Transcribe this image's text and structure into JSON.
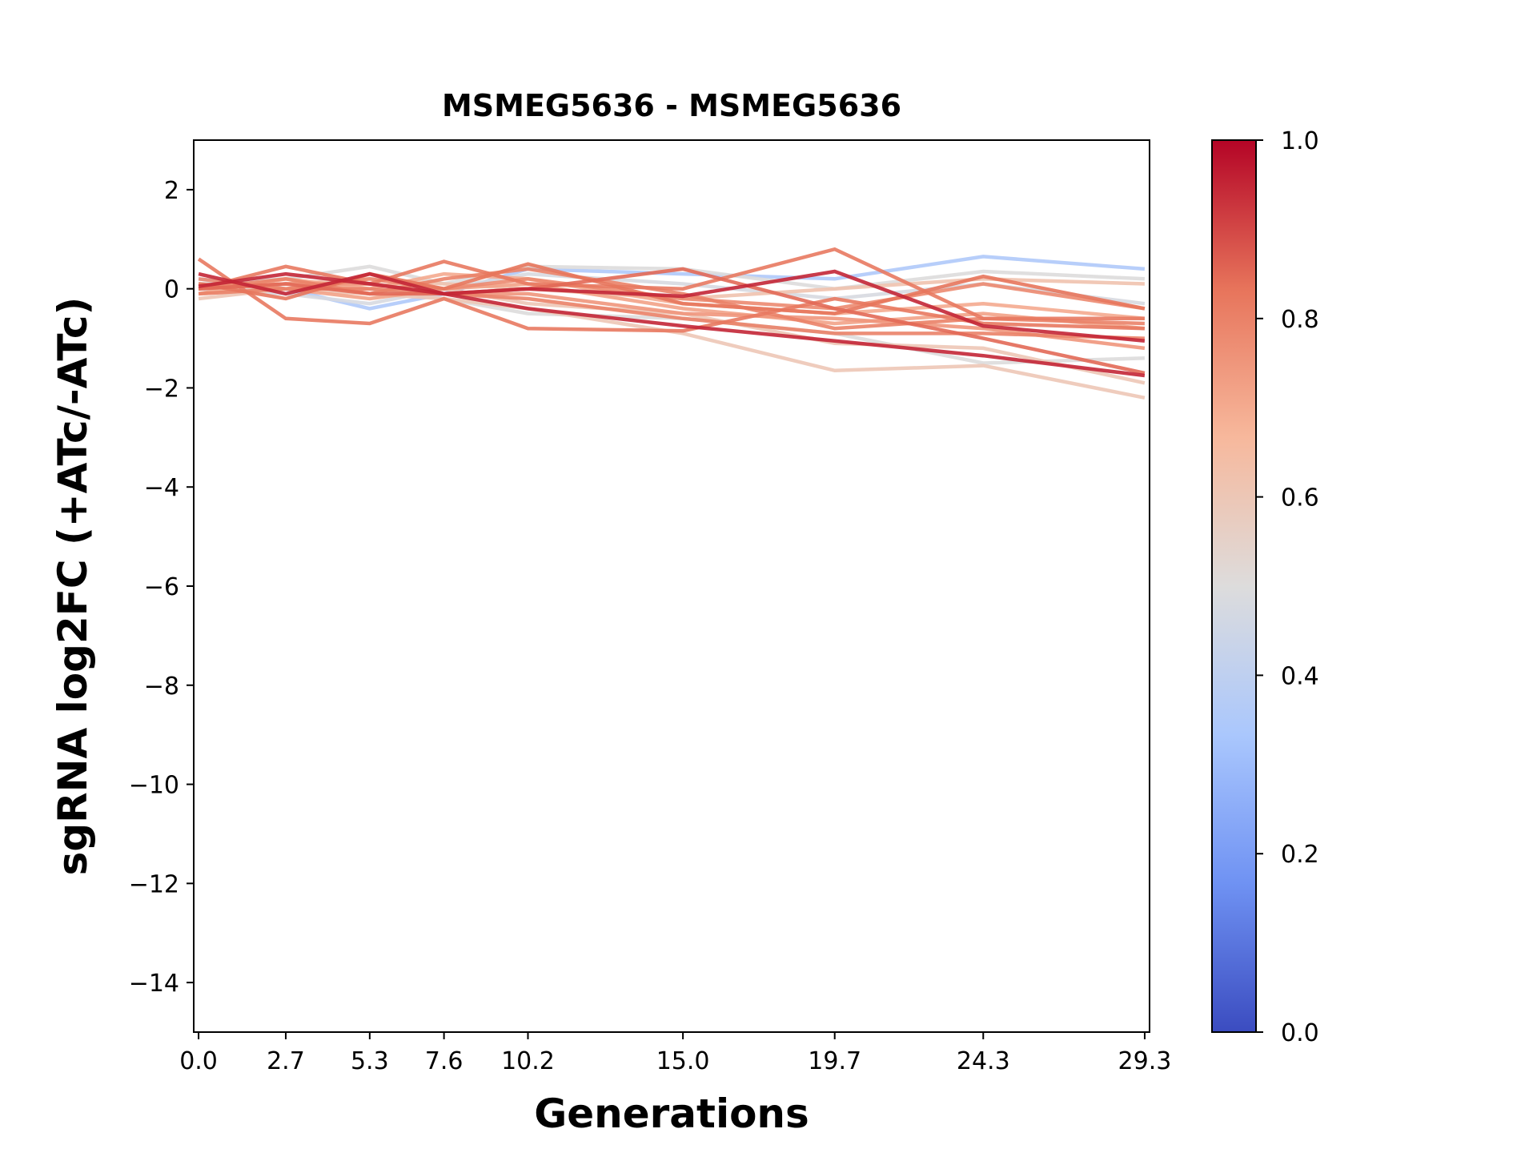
{
  "chart_data": {
    "type": "line",
    "title": "MSMEG5636 - MSMEG5636",
    "xlabel": "Generations",
    "ylabel": "sgRNA log2FC (+ATc/-ATc)",
    "x": [
      0.0,
      2.7,
      5.3,
      7.6,
      10.2,
      15.0,
      19.7,
      24.3,
      29.3
    ],
    "x_tick_labels": [
      "0.0",
      "2.7",
      "5.3",
      "7.6",
      "10.2",
      "15.0",
      "19.7",
      "24.3",
      "29.3"
    ],
    "y_ticks": [
      2,
      0,
      -2,
      -4,
      -6,
      -8,
      -10,
      -12,
      -14
    ],
    "y_tick_labels": [
      "2",
      "0",
      "−2",
      "−4",
      "−6",
      "−8",
      "−10",
      "−12",
      "−14"
    ],
    "xlim": [
      -0.15,
      29.45
    ],
    "ylim": [
      -15,
      3
    ],
    "grid": false,
    "colormap": "coolwarm",
    "colorbar": {
      "range": [
        0.0,
        1.0
      ],
      "tick_labels": [
        "0.0",
        "0.2",
        "0.4",
        "0.6",
        "0.8",
        "1.0"
      ],
      "colors": [
        "#3b4cc0",
        "#6f92f3",
        "#aac7fd",
        "#dddcdc",
        "#f7b89c",
        "#e7745b",
        "#b40426"
      ]
    },
    "series": [
      {
        "color_value": 0.35,
        "values": [
          0.2,
          0.0,
          -0.4,
          -0.1,
          0.4,
          0.3,
          0.2,
          0.65,
          0.4
        ]
      },
      {
        "color_value": 0.5,
        "values": [
          0.1,
          0.2,
          0.45,
          0.1,
          0.45,
          0.4,
          0.0,
          0.35,
          0.2
        ]
      },
      {
        "color_value": 0.48,
        "values": [
          0.0,
          -0.1,
          -0.3,
          0.0,
          0.3,
          0.1,
          -0.2,
          0.1,
          -0.3
        ]
      },
      {
        "color_value": 0.5,
        "values": [
          -0.1,
          0.1,
          0.0,
          -0.2,
          -0.5,
          -0.6,
          -0.9,
          -1.5,
          -1.4
        ]
      },
      {
        "color_value": 0.6,
        "values": [
          -0.2,
          0.0,
          -0.1,
          -0.2,
          -0.4,
          -0.9,
          -1.65,
          -1.55,
          -2.2
        ]
      },
      {
        "color_value": 0.6,
        "values": [
          -0.1,
          0.0,
          0.1,
          0.0,
          -0.3,
          -0.5,
          -1.1,
          -1.2,
          -1.9
        ]
      },
      {
        "color_value": 0.62,
        "values": [
          0.0,
          0.1,
          0.2,
          0.1,
          0.0,
          -0.2,
          0.0,
          0.2,
          0.1
        ]
      },
      {
        "color_value": 0.7,
        "values": [
          -0.1,
          0.2,
          0.0,
          0.3,
          0.2,
          -0.3,
          -0.5,
          -0.3,
          -0.6
        ]
      },
      {
        "color_value": 0.72,
        "values": [
          0.1,
          0.0,
          -0.2,
          0.0,
          0.1,
          -0.4,
          -0.7,
          -0.5,
          -0.8
        ]
      },
      {
        "color_value": 0.75,
        "values": [
          0.0,
          0.1,
          0.1,
          -0.1,
          -0.1,
          -0.5,
          -0.6,
          -0.8,
          -1.2
        ]
      },
      {
        "color_value": 0.78,
        "values": [
          0.2,
          0.0,
          0.2,
          0.0,
          0.2,
          -0.2,
          -0.4,
          0.1,
          -0.4
        ]
      },
      {
        "color_value": 0.8,
        "values": [
          0.0,
          0.2,
          -0.1,
          0.2,
          0.4,
          -0.1,
          -0.8,
          -0.6,
          -0.7
        ]
      },
      {
        "color_value": 0.8,
        "values": [
          -0.1,
          0.0,
          0.0,
          -0.1,
          -0.2,
          -0.6,
          -0.9,
          -0.9,
          -1.0
        ]
      },
      {
        "color_value": 0.82,
        "values": [
          0.6,
          -0.6,
          -0.7,
          -0.2,
          -0.8,
          -0.85,
          -0.2,
          -0.7,
          -0.8
        ]
      },
      {
        "color_value": 0.82,
        "values": [
          0.0,
          0.45,
          0.1,
          0.55,
          0.1,
          0.0,
          0.8,
          -0.6,
          -0.6
        ]
      },
      {
        "color_value": 0.83,
        "values": [
          0.1,
          -0.2,
          0.3,
          0.0,
          0.5,
          -0.3,
          -0.5,
          0.25,
          -0.4
        ]
      },
      {
        "color_value": 0.85,
        "values": [
          0.0,
          0.1,
          -0.1,
          -0.1,
          0.0,
          0.4,
          -0.4,
          -1.0,
          -1.7
        ]
      },
      {
        "color_value": 0.95,
        "values": [
          0.3,
          -0.1,
          0.3,
          -0.1,
          -0.4,
          -0.75,
          -1.05,
          -1.35,
          -1.75
        ]
      },
      {
        "color_value": 0.95,
        "values": [
          0.05,
          0.3,
          0.1,
          -0.1,
          0.0,
          -0.15,
          0.35,
          -0.75,
          -1.05
        ]
      }
    ]
  }
}
